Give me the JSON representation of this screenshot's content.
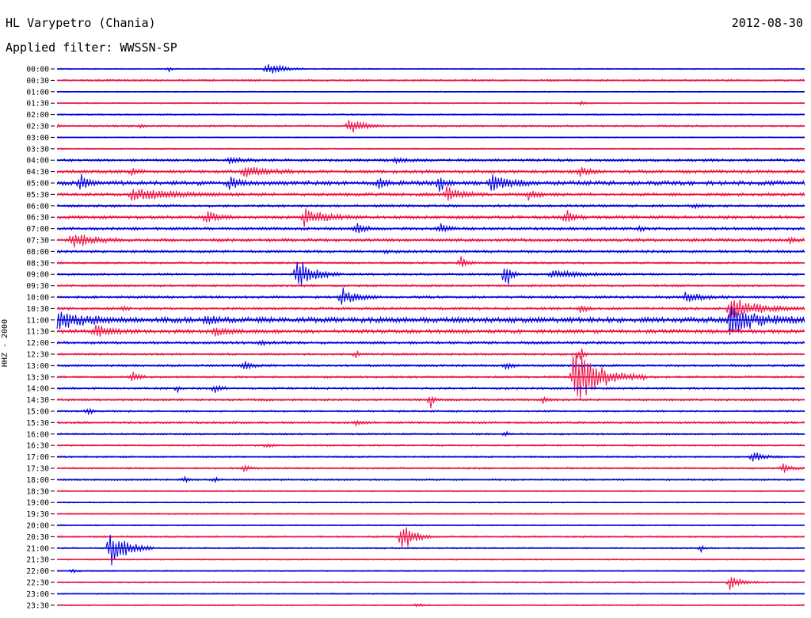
{
  "header": {
    "station": "HL Varypetro (Chania)",
    "date": "2012-08-30",
    "filter": "Applied filter: WWSSN-SP"
  },
  "chart_data": {
    "type": "line",
    "title": "HL Varypetro (Chania)",
    "subtitle": "Applied filter: WWSSN-SP",
    "date": "2012-08-30",
    "ylabel": "HHZ - 2000",
    "xlabel": "",
    "grid": false,
    "series_colors": [
      "#0000dd",
      "#ee1144"
    ],
    "rows": [
      {
        "label": "00:00",
        "noise": 0.6,
        "events": [
          {
            "x": 0.28,
            "amp": 7,
            "len": 0.05
          },
          {
            "x": 0.15,
            "amp": 2,
            "len": 0.01
          }
        ]
      },
      {
        "label": "00:30",
        "noise": 0.9,
        "events": []
      },
      {
        "label": "01:00",
        "noise": 0.5,
        "events": []
      },
      {
        "label": "01:30",
        "noise": 0.6,
        "events": [
          {
            "x": 0.7,
            "amp": 1.5,
            "len": 0.02
          }
        ]
      },
      {
        "label": "02:00",
        "noise": 0.7,
        "events": []
      },
      {
        "label": "02:30",
        "noise": 0.9,
        "events": [
          {
            "x": 0.0,
            "amp": 2,
            "len": 0.01
          },
          {
            "x": 0.11,
            "amp": 2,
            "len": 0.01
          },
          {
            "x": 0.39,
            "amp": 7,
            "len": 0.05
          }
        ]
      },
      {
        "label": "03:00",
        "noise": 0.5,
        "events": []
      },
      {
        "label": "03:30",
        "noise": 0.6,
        "events": []
      },
      {
        "label": "04:00",
        "noise": 1.3,
        "events": [
          {
            "x": 0.23,
            "amp": 3,
            "len": 0.05
          },
          {
            "x": 0.45,
            "amp": 2,
            "len": 0.05
          }
        ]
      },
      {
        "label": "04:30",
        "noise": 1.5,
        "events": [
          {
            "x": 0.25,
            "amp": 5,
            "len": 0.08
          },
          {
            "x": 0.1,
            "amp": 3,
            "len": 0.02
          },
          {
            "x": 0.7,
            "amp": 4,
            "len": 0.03
          }
        ]
      },
      {
        "label": "05:00",
        "noise": 2.0,
        "events": [
          {
            "x": 0.03,
            "amp": 8,
            "len": 0.03
          },
          {
            "x": 0.23,
            "amp": 7,
            "len": 0.03
          },
          {
            "x": 0.43,
            "amp": 7,
            "len": 0.02
          },
          {
            "x": 0.51,
            "amp": 9,
            "len": 0.02
          },
          {
            "x": 0.58,
            "amp": 8,
            "len": 0.06
          }
        ]
      },
      {
        "label": "05:30",
        "noise": 1.5,
        "events": [
          {
            "x": 0.1,
            "amp": 5,
            "len": 0.15
          },
          {
            "x": 0.52,
            "amp": 7,
            "len": 0.05
          },
          {
            "x": 0.63,
            "amp": 4,
            "len": 0.04
          }
        ]
      },
      {
        "label": "06:00",
        "noise": 1.2,
        "events": [
          {
            "x": 0.85,
            "amp": 2,
            "len": 0.03
          }
        ]
      },
      {
        "label": "06:30",
        "noise": 1.5,
        "events": [
          {
            "x": 0.2,
            "amp": 6,
            "len": 0.04
          },
          {
            "x": 0.33,
            "amp": 7,
            "len": 0.08
          },
          {
            "x": 0.68,
            "amp": 7,
            "len": 0.03
          }
        ]
      },
      {
        "label": "07:00",
        "noise": 1.3,
        "events": [
          {
            "x": 0.4,
            "amp": 5,
            "len": 0.03
          },
          {
            "x": 0.51,
            "amp": 5,
            "len": 0.03
          },
          {
            "x": 0.78,
            "amp": 6,
            "len": 0.01
          }
        ]
      },
      {
        "label": "07:30",
        "noise": 1.5,
        "events": [
          {
            "x": 0.02,
            "amp": 8,
            "len": 0.07
          },
          {
            "x": 0.98,
            "amp": 3,
            "len": 0.02
          }
        ]
      },
      {
        "label": "08:00",
        "noise": 1.2,
        "events": [
          {
            "x": 0.44,
            "amp": 2,
            "len": 0.02
          }
        ]
      },
      {
        "label": "08:30",
        "noise": 1.0,
        "events": [
          {
            "x": 0.54,
            "amp": 6,
            "len": 0.02
          }
        ]
      },
      {
        "label": "09:00",
        "noise": 1.0,
        "events": [
          {
            "x": 0.32,
            "amp": 16,
            "len": 0.06
          },
          {
            "x": 0.6,
            "amp": 14,
            "len": 0.02
          },
          {
            "x": 0.66,
            "amp": 4,
            "len": 0.1
          }
        ]
      },
      {
        "label": "09:30",
        "noise": 1.0,
        "events": []
      },
      {
        "label": "10:00",
        "noise": 1.2,
        "events": [
          {
            "x": 0.38,
            "amp": 9,
            "len": 0.05
          },
          {
            "x": 0.84,
            "amp": 5,
            "len": 0.06
          }
        ]
      },
      {
        "label": "10:30",
        "noise": 1.2,
        "events": [
          {
            "x": 0.09,
            "amp": 3,
            "len": 0.01
          },
          {
            "x": 0.7,
            "amp": 4,
            "len": 0.02
          },
          {
            "x": 0.9,
            "amp": 10,
            "len": 0.1
          }
        ]
      },
      {
        "label": "11:00",
        "noise": 2.5,
        "events": [
          {
            "x": 0.0,
            "amp": 8,
            "len": 0.1
          },
          {
            "x": 0.2,
            "amp": 4,
            "len": 0.03
          },
          {
            "x": 0.9,
            "amp": 12,
            "len": 0.1
          }
        ]
      },
      {
        "label": "11:30",
        "noise": 1.8,
        "events": [
          {
            "x": 0.05,
            "amp": 6,
            "len": 0.05
          },
          {
            "x": 0.21,
            "amp": 5,
            "len": 0.04
          }
        ]
      },
      {
        "label": "12:00",
        "noise": 1.2,
        "events": [
          {
            "x": 0.27,
            "amp": 2,
            "len": 0.04
          }
        ]
      },
      {
        "label": "12:30",
        "noise": 1.0,
        "events": [
          {
            "x": 0.4,
            "amp": 4,
            "len": 0.01
          },
          {
            "x": 0.7,
            "amp": 10,
            "len": 0.01
          }
        ]
      },
      {
        "label": "13:00",
        "noise": 1.0,
        "events": [
          {
            "x": 0.25,
            "amp": 4,
            "len": 0.03
          },
          {
            "x": 0.6,
            "amp": 4,
            "len": 0.02
          }
        ]
      },
      {
        "label": "13:30",
        "noise": 1.0,
        "events": [
          {
            "x": 0.1,
            "amp": 6,
            "len": 0.02
          },
          {
            "x": 0.69,
            "amp": 26,
            "len": 0.1
          }
        ]
      },
      {
        "label": "14:00",
        "noise": 1.0,
        "events": [
          {
            "x": 0.16,
            "amp": 4,
            "len": 0.01
          },
          {
            "x": 0.21,
            "amp": 5,
            "len": 0.02
          }
        ]
      },
      {
        "label": "14:30",
        "noise": 1.0,
        "events": [
          {
            "x": 0.5,
            "amp": 7,
            "len": 0.01
          },
          {
            "x": 0.65,
            "amp": 3,
            "len": 0.02
          }
        ]
      },
      {
        "label": "15:00",
        "noise": 0.9,
        "events": [
          {
            "x": 0.04,
            "amp": 3,
            "len": 0.02
          }
        ]
      },
      {
        "label": "15:30",
        "noise": 1.0,
        "events": [
          {
            "x": 0.4,
            "amp": 2,
            "len": 0.03
          }
        ]
      },
      {
        "label": "16:00",
        "noise": 0.8,
        "events": [
          {
            "x": 0.6,
            "amp": 3,
            "len": 0.01
          }
        ]
      },
      {
        "label": "16:30",
        "noise": 0.8,
        "events": [
          {
            "x": 0.28,
            "amp": 2,
            "len": 0.02
          }
        ]
      },
      {
        "label": "17:00",
        "noise": 0.8,
        "events": [
          {
            "x": 0.93,
            "amp": 5,
            "len": 0.04
          }
        ]
      },
      {
        "label": "17:30",
        "noise": 0.8,
        "events": [
          {
            "x": 0.25,
            "amp": 3,
            "len": 0.02
          },
          {
            "x": 0.97,
            "amp": 5,
            "len": 0.03
          }
        ]
      },
      {
        "label": "18:00",
        "noise": 0.8,
        "events": [
          {
            "x": 0.17,
            "amp": 4,
            "len": 0.01
          },
          {
            "x": 0.21,
            "amp": 4,
            "len": 0.01
          }
        ]
      },
      {
        "label": "18:30",
        "noise": 0.6,
        "events": []
      },
      {
        "label": "19:00",
        "noise": 0.5,
        "events": []
      },
      {
        "label": "19:30",
        "noise": 0.6,
        "events": []
      },
      {
        "label": "20:00",
        "noise": 0.6,
        "events": []
      },
      {
        "label": "20:30",
        "noise": 0.8,
        "events": [
          {
            "x": 0.46,
            "amp": 16,
            "len": 0.04
          }
        ]
      },
      {
        "label": "21:00",
        "noise": 0.7,
        "events": [
          {
            "x": 0.07,
            "amp": 18,
            "len": 0.06
          },
          {
            "x": 0.86,
            "amp": 5,
            "len": 0.01
          }
        ]
      },
      {
        "label": "21:30",
        "noise": 0.6,
        "events": []
      },
      {
        "label": "22:00",
        "noise": 0.6,
        "events": [
          {
            "x": 0.02,
            "amp": 2,
            "len": 0.02
          }
        ]
      },
      {
        "label": "22:30",
        "noise": 0.7,
        "events": [
          {
            "x": 0.9,
            "amp": 6,
            "len": 0.04
          }
        ]
      },
      {
        "label": "23:00",
        "noise": 0.6,
        "events": []
      },
      {
        "label": "23:30",
        "noise": 0.6,
        "events": [
          {
            "x": 0.48,
            "amp": 2,
            "len": 0.02
          }
        ]
      }
    ]
  }
}
